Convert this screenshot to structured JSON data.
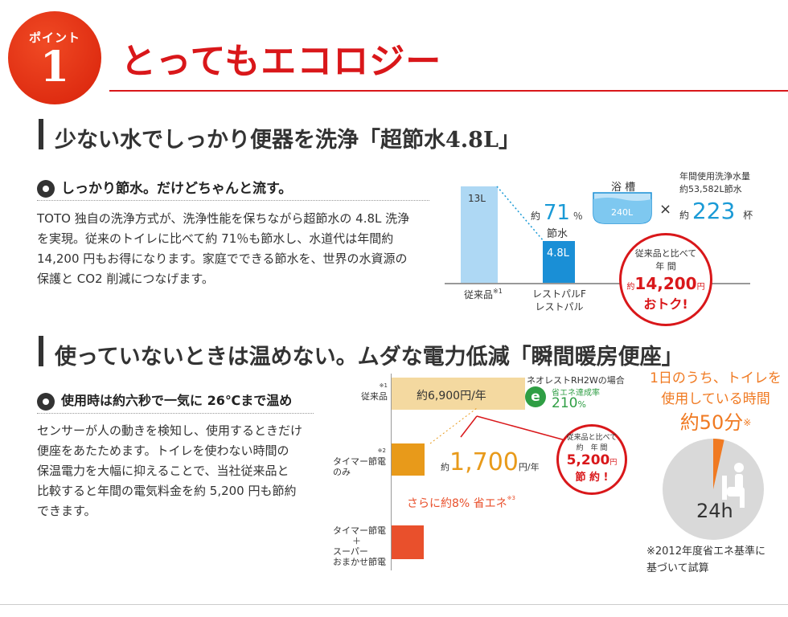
{
  "header": {
    "badge_label": "ポイント",
    "badge_number": "1",
    "title": "とってもエコロジー"
  },
  "section1": {
    "heading": "少ない水でしっかり便器を洗浄「超節水4.8L」",
    "subheading": "しっかり節水。だけどちゃんと流す。",
    "body": [
      "TOTO 独自の洗浄方式が、洗浄性能を保ちながら超節水の 4.8L 洗浄",
      "を実現。従来のトイレに比べて約 71％も節水し、水道代は年間約",
      "14,200 円もお得になります。家庭でできる節水を、世界の水資源の",
      "保護と CO2 削減につなげます。"
    ],
    "figure": {
      "bar_old_label": "13L",
      "bar_new_label": "4.8L",
      "axis_old": "従来品",
      "axis_old_note": "※1",
      "axis_new_1": "レストパルF",
      "axis_new_2": "レストパル",
      "saving_prefix": "約",
      "saving_value": "71",
      "saving_unit": "％",
      "saving_label": "節水",
      "bathtub_label": "浴 槽",
      "bathtub_volume": "240L",
      "times": "×",
      "annual_title_1": "年間使用洗浄水量",
      "annual_title_2": "約53,582L節水",
      "count_prefix": "約",
      "count_value": "223",
      "count_unit": "杯",
      "circle_line1": "従来品と比べて",
      "circle_line2": "年 間",
      "circle_prefix": "約",
      "circle_value": "14,200",
      "circle_unit": "円",
      "circle_line4": "おトク!"
    }
  },
  "section2": {
    "heading": "使っていないときは温めない。ムダな電力低減「瞬間暖房便座」",
    "subheading": "使用時は約六秒で一気に 26℃まで温め",
    "body": [
      "センサーが人の動きを検知し、使用するときだけ",
      "便座をあたためます。トイレを使わない時間の",
      "保温電力を大幅に抑えることで、当社従来品と",
      "比較すると年間の電気料金を約 5,200 円も節約",
      "できます。"
    ],
    "chart_data": {
      "type": "bar",
      "orientation": "horizontal",
      "categories": [
        "従来品",
        "タイマー節電のみ",
        "タイマー節電＋スーパーおまかせ節電"
      ],
      "values": [
        6900,
        1700,
        null
      ],
      "unit": "円/年",
      "colors": [
        "#f4d9a0",
        "#e89a1a",
        "#e9502c"
      ],
      "cat_old": "従来品",
      "cat_old_note": "※1",
      "cat_timer_1": "タイマー節電",
      "cat_timer_2": "のみ",
      "cat_timer_note": "※2",
      "cat_super_1": "タイマー節電",
      "cat_super_2": "＋",
      "cat_super_3": "スーパー",
      "cat_super_4": "おまかせ節電",
      "label_old": "約6,900円/年",
      "label_timer_prefix": "約",
      "label_timer_value": "1,700",
      "label_timer_unit": "円/年",
      "extra_saving": "さらに約8% 省エネ",
      "extra_saving_note": "※3",
      "eco_title": "ネオレストRH2Wの場合",
      "eco_sub": "省エネ達成率",
      "eco_value": "210",
      "eco_unit": "%",
      "circle_line1": "従来品と比べて",
      "circle_line2": "約　年 間",
      "circle_value": "5,200",
      "circle_unit": "円",
      "circle_line4": "節 約 !"
    },
    "pie": {
      "title_1": "1日のうち、トイレを",
      "title_2": "使用している時間",
      "title_3": "約50分",
      "title_note": "※",
      "total": "24h",
      "minutes_used": 50,
      "minutes_total": 1440,
      "note_1": "※2012年度省エネ基準に",
      "note_2": "基づいて試算"
    }
  }
}
